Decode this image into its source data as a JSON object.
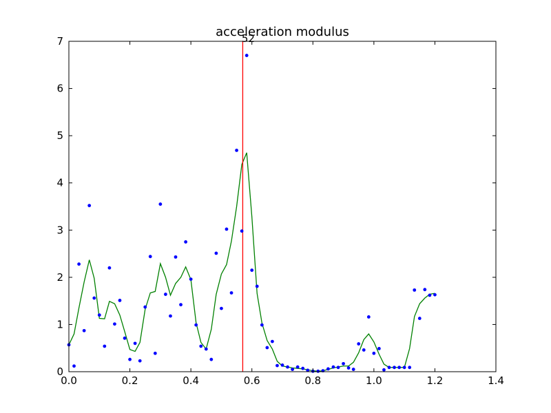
{
  "chart_data": {
    "type": "scatter",
    "title": "acceleration modulus",
    "xlabel": "",
    "ylabel": "",
    "xlim": [
      0.0,
      1.4
    ],
    "ylim": [
      0,
      7
    ],
    "x_ticks": [
      "0.0",
      "0.2",
      "0.4",
      "0.6",
      "0.8",
      "1.0",
      "1.2",
      "1.4"
    ],
    "y_ticks": [
      "0",
      "1",
      "2",
      "3",
      "4",
      "5",
      "6",
      "7"
    ],
    "grid": false,
    "legend": "none",
    "vertical_marker": {
      "x": 0.57,
      "label": "52",
      "color": "#ff0000"
    },
    "series": [
      {
        "kind": "points",
        "color": "#0000ff",
        "x": [
          0.0,
          0.017,
          0.033,
          0.05,
          0.067,
          0.083,
          0.1,
          0.117,
          0.133,
          0.15,
          0.167,
          0.183,
          0.2,
          0.217,
          0.233,
          0.25,
          0.267,
          0.283,
          0.3,
          0.317,
          0.333,
          0.35,
          0.367,
          0.383,
          0.4,
          0.417,
          0.433,
          0.45,
          0.467,
          0.483,
          0.5,
          0.517,
          0.533,
          0.55,
          0.567,
          0.583,
          0.6,
          0.617,
          0.633,
          0.65,
          0.667,
          0.683,
          0.7,
          0.717,
          0.733,
          0.75,
          0.767,
          0.783,
          0.8,
          0.817,
          0.833,
          0.85,
          0.867,
          0.883,
          0.9,
          0.917,
          0.933,
          0.95,
          0.967,
          0.983,
          1.0,
          1.017,
          1.033,
          1.05,
          1.067,
          1.083,
          1.1,
          1.117,
          1.133,
          1.15,
          1.167,
          1.183,
          1.2
        ],
        "y": [
          0.57,
          0.12,
          2.28,
          0.87,
          3.52,
          1.56,
          1.2,
          0.54,
          2.2,
          1.01,
          1.51,
          0.71,
          0.26,
          0.6,
          0.23,
          1.37,
          2.44,
          0.39,
          3.55,
          1.64,
          1.18,
          2.43,
          1.42,
          2.75,
          1.96,
          0.99,
          0.54,
          0.48,
          0.26,
          2.51,
          1.34,
          3.02,
          1.67,
          4.69,
          2.98,
          6.7,
          2.15,
          1.81,
          0.99,
          0.51,
          0.64,
          0.13,
          0.14,
          0.1,
          0.05,
          0.1,
          0.07,
          0.03,
          0.01,
          0.01,
          0.02,
          0.06,
          0.1,
          0.09,
          0.17,
          0.08,
          0.05,
          0.59,
          0.46,
          1.16,
          0.39,
          0.49,
          0.04,
          0.09,
          0.09,
          0.09,
          0.09,
          0.09,
          1.73,
          1.13,
          1.74,
          1.62,
          1.63
        ]
      },
      {
        "kind": "line",
        "color": "#008000",
        "x": [
          0.0,
          0.017,
          0.033,
          0.05,
          0.067,
          0.083,
          0.1,
          0.117,
          0.133,
          0.15,
          0.167,
          0.183,
          0.2,
          0.217,
          0.233,
          0.25,
          0.267,
          0.283,
          0.3,
          0.317,
          0.333,
          0.35,
          0.367,
          0.383,
          0.4,
          0.417,
          0.433,
          0.45,
          0.467,
          0.483,
          0.5,
          0.517,
          0.533,
          0.55,
          0.567,
          0.583,
          0.6,
          0.617,
          0.633,
          0.65,
          0.667,
          0.683,
          0.7,
          0.717,
          0.733,
          0.75,
          0.767,
          0.783,
          0.8,
          0.817,
          0.833,
          0.85,
          0.867,
          0.883,
          0.9,
          0.917,
          0.933,
          0.95,
          0.967,
          0.983,
          1.0,
          1.017,
          1.033,
          1.05,
          1.067,
          1.083,
          1.1,
          1.117,
          1.133,
          1.15,
          1.167,
          1.183,
          1.2
        ],
        "y": [
          0.57,
          0.8,
          1.35,
          1.9,
          2.37,
          1.98,
          1.13,
          1.12,
          1.49,
          1.44,
          1.2,
          0.85,
          0.47,
          0.43,
          0.62,
          1.32,
          1.67,
          1.7,
          2.29,
          2.0,
          1.62,
          1.87,
          2.0,
          2.22,
          1.95,
          1.04,
          0.62,
          0.48,
          0.9,
          1.64,
          2.07,
          2.27,
          2.77,
          3.5,
          4.39,
          4.64,
          3.28,
          1.66,
          1.03,
          0.66,
          0.48,
          0.22,
          0.12,
          0.1,
          0.08,
          0.07,
          0.06,
          0.04,
          0.02,
          0.01,
          0.02,
          0.05,
          0.08,
          0.1,
          0.12,
          0.12,
          0.2,
          0.4,
          0.68,
          0.8,
          0.63,
          0.37,
          0.16,
          0.09,
          0.09,
          0.09,
          0.09,
          0.49,
          1.17,
          1.44,
          1.56,
          1.64,
          1.66
        ]
      }
    ]
  }
}
